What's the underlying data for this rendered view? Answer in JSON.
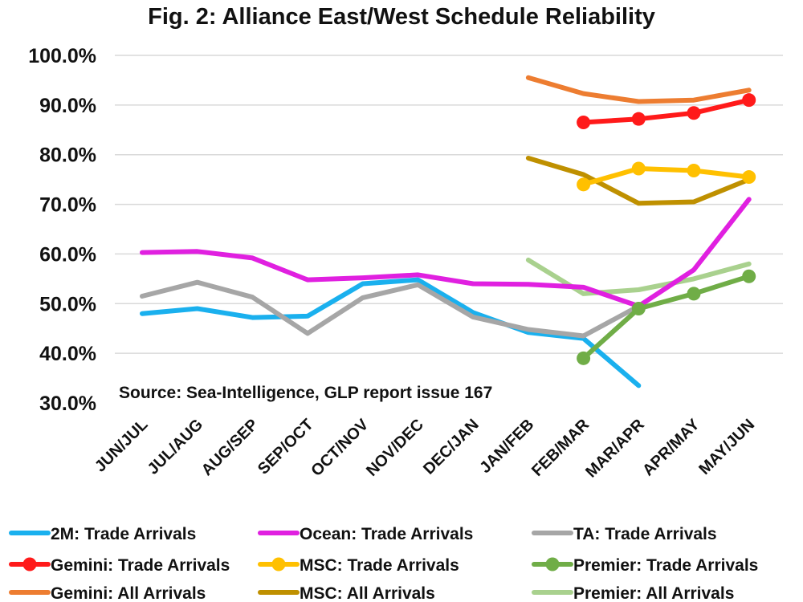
{
  "chart_data": {
    "type": "line",
    "title": "Fig. 2: Alliance East/West Schedule Reliability",
    "source": "Source: Sea-Intelligence, GLP report issue 167",
    "categories": [
      "JUN/JUL",
      "JUL/AUG",
      "AUG/SEP",
      "SEP/OCT",
      "OCT/NOV",
      "NOV/DEC",
      "DEC/JAN",
      "JAN/FEB",
      "FEB/MAR",
      "MAR/APR",
      "APR/MAY",
      "MAY/JUN"
    ],
    "yticks": [
      "30.0%",
      "40.0%",
      "50.0%",
      "60.0%",
      "70.0%",
      "80.0%",
      "90.0%",
      "100.0%"
    ],
    "ylim": [
      30,
      100
    ],
    "grid": true,
    "legend_position": "bottom",
    "series": [
      {
        "name": "2M: Trade Arrivals",
        "color": "#1ab0ee",
        "markers": false,
        "values": [
          48.0,
          49.0,
          47.2,
          47.5,
          54.0,
          54.8,
          48.2,
          44.2,
          43.0,
          33.5,
          null,
          null
        ]
      },
      {
        "name": "Ocean: Trade Arrivals",
        "color": "#e020e0",
        "markers": false,
        "values": [
          60.3,
          60.5,
          59.2,
          54.8,
          55.2,
          55.8,
          54.0,
          53.9,
          53.3,
          49.5,
          56.8,
          71.0
        ]
      },
      {
        "name": "TA: Trade Arrivals",
        "color": "#a6a6a6",
        "markers": false,
        "values": [
          51.5,
          54.3,
          51.3,
          44.0,
          51.2,
          53.8,
          47.3,
          44.8,
          43.5,
          49.5,
          null,
          null
        ]
      },
      {
        "name": "Gemini: Trade Arrivals",
        "color": "#ff1a1a",
        "markers": true,
        "values": [
          null,
          null,
          null,
          null,
          null,
          null,
          null,
          null,
          86.5,
          87.2,
          88.4,
          91.0
        ]
      },
      {
        "name": "MSC: Trade Arrivals",
        "color": "#ffc000",
        "markers": true,
        "values": [
          null,
          null,
          null,
          null,
          null,
          null,
          null,
          null,
          74.0,
          77.2,
          76.8,
          75.5
        ]
      },
      {
        "name": "Premier: Trade Arrivals",
        "color": "#70ad47",
        "markers": true,
        "values": [
          null,
          null,
          null,
          null,
          null,
          null,
          null,
          null,
          39.0,
          49.0,
          52.0,
          55.5
        ]
      },
      {
        "name": "Gemini: All Arrivals",
        "color": "#ed7d31",
        "markers": false,
        "values": [
          null,
          null,
          null,
          null,
          null,
          null,
          null,
          95.5,
          92.3,
          90.7,
          91.0,
          93.0
        ]
      },
      {
        "name": "MSC: All Arrivals",
        "color": "#bf9000",
        "markers": false,
        "values": [
          null,
          null,
          null,
          null,
          null,
          null,
          null,
          79.3,
          76.0,
          70.2,
          70.5,
          75.0
        ]
      },
      {
        "name": "Premier: All Arrivals",
        "color": "#a9d18e",
        "markers": false,
        "values": [
          null,
          null,
          null,
          null,
          null,
          null,
          null,
          58.8,
          52.0,
          52.8,
          55.0,
          58.0
        ]
      }
    ]
  }
}
